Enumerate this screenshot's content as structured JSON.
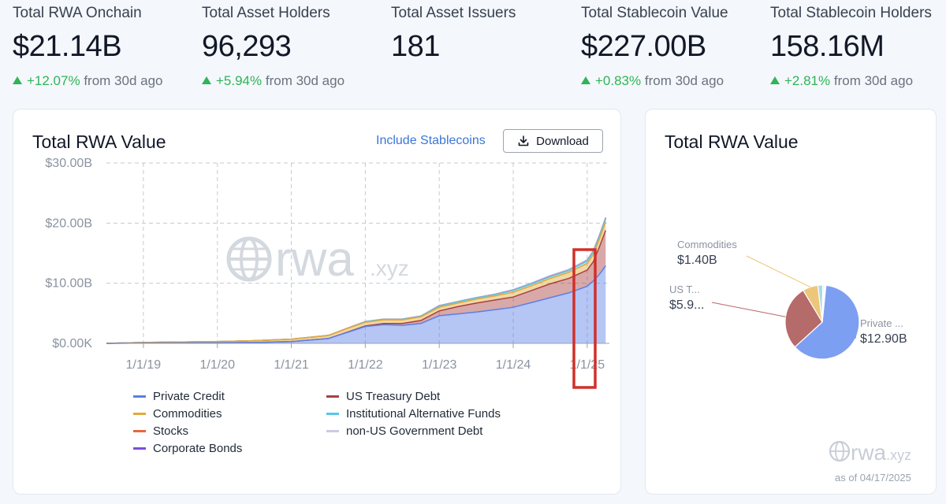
{
  "stats": [
    {
      "label": "Total RWA Onchain",
      "value": "$21.14B",
      "change": "+12.07%",
      "period": "from 30d ago"
    },
    {
      "label": "Total Asset Holders",
      "value": "96,293",
      "change": "+5.94%",
      "period": "from 30d ago"
    },
    {
      "label": "Total Asset Issuers",
      "value": "181",
      "change": "",
      "period": ""
    },
    {
      "label": "Total Stablecoin Value",
      "value": "$227.00B",
      "change": "+0.83%",
      "period": "from 30d ago"
    },
    {
      "label": "Total Stablecoin Holders",
      "value": "158.16M",
      "change": "+2.81%",
      "period": "from 30d ago"
    }
  ],
  "left_card": {
    "title": "Total RWA Value",
    "include_label": "Include Stablecoins",
    "download_label": "Download",
    "watermark": "rwa",
    "watermark_suffix": ".xyz"
  },
  "right_card": {
    "title": "Total RWA Value",
    "watermark": "rwa",
    "watermark_suffix": ".xyz",
    "as_of": "as of 04/17/2025"
  },
  "chart_data": [
    {
      "type": "area",
      "title": "Total RWA Value",
      "y_ticks": [
        "$0.00K",
        "$10.00B",
        "$20.00B",
        "$30.00B"
      ],
      "ylim": [
        0,
        30
      ],
      "y_unit": "B USD",
      "x_ticks": [
        "1/1/19",
        "1/1/20",
        "1/1/21",
        "1/1/22",
        "1/1/23",
        "1/1/24",
        "1/1/25"
      ],
      "grid": true,
      "stacked": true,
      "legend_position": "bottom",
      "x": [
        "2018-07",
        "2019-01",
        "2020-01",
        "2020-07",
        "2021-01",
        "2021-07",
        "2021-10",
        "2022-01",
        "2022-04",
        "2022-07",
        "2022-10",
        "2023-01",
        "2023-04",
        "2023-07",
        "2023-10",
        "2024-01",
        "2024-04",
        "2024-07",
        "2024-10",
        "2025-01",
        "2025-02",
        "2025-03",
        "2025-04"
      ],
      "series": [
        {
          "name": "Private Credit",
          "color": "#5b7fe6",
          "values": [
            0,
            0.05,
            0.1,
            0.15,
            0.3,
            0.8,
            1.8,
            2.8,
            3.1,
            3.0,
            3.3,
            4.6,
            4.9,
            5.2,
            5.6,
            6.0,
            6.8,
            7.6,
            8.4,
            9.5,
            10.4,
            11.5,
            12.9
          ]
        },
        {
          "name": "US Treasury Debt",
          "color": "#a8413e",
          "values": [
            0,
            0,
            0,
            0,
            0,
            0,
            0.05,
            0.1,
            0.2,
            0.3,
            0.5,
            0.8,
            1.2,
            1.5,
            1.6,
            1.7,
            2.0,
            2.3,
            2.4,
            2.7,
            3.2,
            4.6,
            5.9
          ]
        },
        {
          "name": "Commodities",
          "color": "#e2a93c",
          "values": [
            0,
            0.1,
            0.2,
            0.3,
            0.4,
            0.5,
            0.6,
            0.6,
            0.6,
            0.6,
            0.6,
            0.6,
            0.6,
            0.65,
            0.7,
            0.8,
            0.8,
            0.9,
            1.0,
            1.1,
            1.2,
            1.3,
            1.4
          ]
        },
        {
          "name": "Institutional Alternative Funds",
          "color": "#56c8e8",
          "values": [
            0,
            0,
            0,
            0,
            0,
            0,
            0,
            0.1,
            0.1,
            0.1,
            0.1,
            0.2,
            0.2,
            0.2,
            0.2,
            0.3,
            0.3,
            0.3,
            0.3,
            0.4,
            0.4,
            0.4,
            0.45
          ]
        },
        {
          "name": "Stocks",
          "color": "#e8673a",
          "values": [
            0,
            0,
            0,
            0,
            0.01,
            0.02,
            0.02,
            0.02,
            0.02,
            0.02,
            0.02,
            0.02,
            0.02,
            0.02,
            0.02,
            0.03,
            0.03,
            0.04,
            0.05,
            0.06,
            0.07,
            0.08,
            0.1
          ]
        },
        {
          "name": "non-US Government Debt",
          "color": "#c9cbe6",
          "values": [
            0,
            0,
            0,
            0,
            0,
            0,
            0,
            0,
            0,
            0.01,
            0.02,
            0.03,
            0.03,
            0.04,
            0.04,
            0.05,
            0.06,
            0.07,
            0.08,
            0.09,
            0.1,
            0.11,
            0.12
          ]
        },
        {
          "name": "Corporate Bonds",
          "color": "#7c4ddb",
          "values": [
            0,
            0,
            0,
            0,
            0,
            0,
            0,
            0,
            0.01,
            0.01,
            0.01,
            0.02,
            0.02,
            0.02,
            0.02,
            0.03,
            0.03,
            0.03,
            0.04,
            0.04,
            0.05,
            0.05,
            0.06
          ]
        }
      ]
    },
    {
      "type": "pie",
      "title": "Total RWA Value",
      "slices": [
        {
          "label": "Private ...",
          "value": 12.9,
          "value_label": "$12.90B",
          "color": "#7d9ff2"
        },
        {
          "label": "US T...",
          "value": 5.9,
          "value_label": "$5.9...",
          "color": "#b56b69"
        },
        {
          "label": "Commodities",
          "value": 1.4,
          "value_label": "$1.40B",
          "color": "#ecc67a"
        },
        {
          "label": "",
          "value": 0.45,
          "value_label": "",
          "color": "#a8dbe8"
        },
        {
          "label": "",
          "value": 0.12,
          "value_label": "",
          "color": "#d7d9ee"
        },
        {
          "label": "",
          "value": 0.1,
          "value_label": "",
          "color": "#eb9a78"
        },
        {
          "label": "",
          "value": 0.06,
          "value_label": "",
          "color": "#a98fe6"
        }
      ]
    }
  ]
}
